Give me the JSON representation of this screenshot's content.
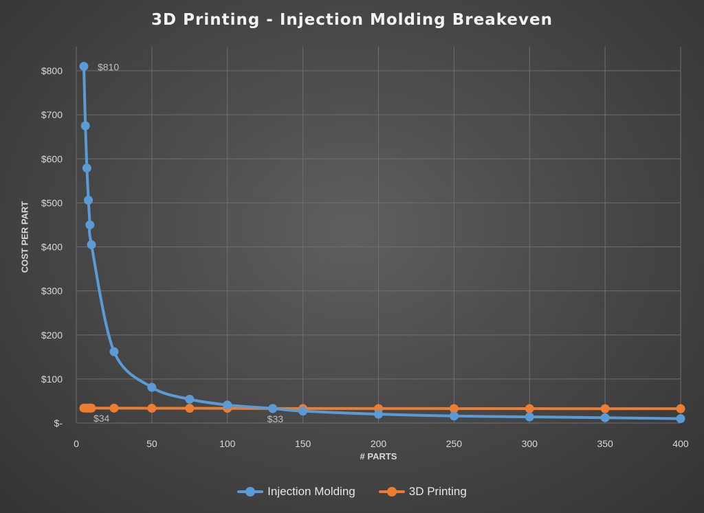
{
  "chart_data": {
    "type": "line",
    "title": "3D Printing - Injection Molding Breakeven",
    "xlabel": "# PARTS",
    "ylabel": "COST PER PART",
    "xlim": [
      0,
      400
    ],
    "ylim": [
      0,
      800
    ],
    "x_ticks": [
      "0",
      "50",
      "100",
      "150",
      "200",
      "250",
      "300",
      "350",
      "400"
    ],
    "y_ticks": [
      "$-",
      "$100",
      "$200",
      "$300",
      "$400",
      "$500",
      "$600",
      "$700",
      "$800"
    ],
    "grid": true,
    "legend_position": "bottom",
    "series": [
      {
        "name": "Injection Molding",
        "color": "#5b9bd5",
        "x": [
          5,
          6,
          7,
          8,
          9,
          10,
          25,
          50,
          75,
          100,
          130,
          150,
          200,
          250,
          300,
          350,
          400
        ],
        "y": [
          810,
          675,
          579,
          506,
          450,
          405,
          162,
          81,
          54,
          41,
          33,
          27,
          20,
          16,
          14,
          12,
          10
        ]
      },
      {
        "name": "3D Printing",
        "color": "#ed7d31",
        "x": [
          5,
          6,
          7,
          8,
          9,
          10,
          25,
          50,
          75,
          100,
          130,
          150,
          200,
          250,
          300,
          350,
          400
        ],
        "y": [
          34,
          34,
          33.9,
          33.9,
          33.9,
          33.9,
          33.8,
          33.6,
          33.5,
          33.4,
          33,
          33,
          33,
          32.8,
          32.7,
          32.6,
          32.5
        ]
      }
    ],
    "annotations": [
      {
        "text": "$810",
        "x": 5,
        "y": 810
      },
      {
        "text": "$34",
        "x": 5,
        "y": 34
      },
      {
        "text": "$33",
        "x": 130,
        "y": 33
      }
    ]
  }
}
